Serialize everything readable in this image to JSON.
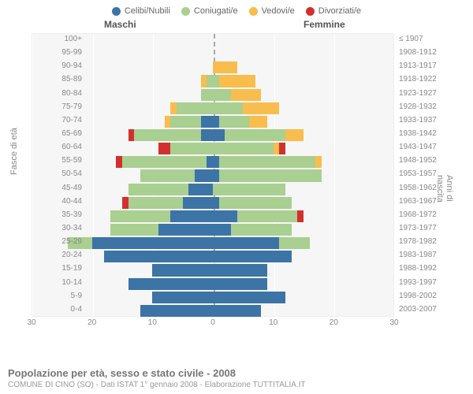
{
  "legend": [
    {
      "label": "Celibi/Nubili",
      "color": "#3c74a6"
    },
    {
      "label": "Coniugati/e",
      "color": "#a9cf91"
    },
    {
      "label": "Vedovi/e",
      "color": "#f9bd4d"
    },
    {
      "label": "Divorziati/e",
      "color": "#d42f2f"
    }
  ],
  "headers": {
    "male": "Maschi",
    "female": "Femmine"
  },
  "axis": {
    "left_title": "Fasce di età",
    "right_title": "Anni di nascita",
    "xmax": 30,
    "xticks": [
      30,
      20,
      10,
      0,
      10,
      20,
      30
    ]
  },
  "colors": {
    "celibi": "#3c74a6",
    "coniugati": "#a9cf91",
    "vedovi": "#f9bd4d",
    "divorziati": "#d42f2f",
    "plot_bg": "#f6f6f6",
    "grid": "#ffffff"
  },
  "rows": [
    {
      "age": "100+",
      "birth": "≤ 1907",
      "m": [
        0,
        0,
        0,
        0
      ],
      "f": [
        0,
        0,
        0,
        0
      ]
    },
    {
      "age": "95-99",
      "birth": "1908-1912",
      "m": [
        0,
        0,
        0,
        0
      ],
      "f": [
        0,
        0,
        0,
        0
      ]
    },
    {
      "age": "90-94",
      "birth": "1913-1917",
      "m": [
        0,
        0,
        0,
        0
      ],
      "f": [
        0,
        0,
        4,
        0
      ]
    },
    {
      "age": "85-89",
      "birth": "1918-1922",
      "m": [
        0,
        1,
        1,
        0
      ],
      "f": [
        0,
        1,
        6,
        0
      ]
    },
    {
      "age": "80-84",
      "birth": "1923-1927",
      "m": [
        0,
        2,
        0,
        0
      ],
      "f": [
        0,
        3,
        5,
        0
      ]
    },
    {
      "age": "75-79",
      "birth": "1928-1932",
      "m": [
        0,
        6,
        1,
        0
      ],
      "f": [
        0,
        5,
        6,
        0
      ]
    },
    {
      "age": "70-74",
      "birth": "1933-1937",
      "m": [
        2,
        5,
        1,
        0
      ],
      "f": [
        1,
        5,
        3,
        0
      ]
    },
    {
      "age": "65-69",
      "birth": "1938-1942",
      "m": [
        2,
        11,
        0,
        1
      ],
      "f": [
        2,
        10,
        3,
        0
      ]
    },
    {
      "age": "60-64",
      "birth": "1943-1947",
      "m": [
        0,
        7,
        0,
        2
      ],
      "f": [
        0,
        10,
        1,
        1
      ]
    },
    {
      "age": "55-59",
      "birth": "1948-1952",
      "m": [
        1,
        14,
        0,
        1
      ],
      "f": [
        1,
        16,
        1,
        0
      ]
    },
    {
      "age": "50-54",
      "birth": "1953-1957",
      "m": [
        3,
        9,
        0,
        0
      ],
      "f": [
        1,
        17,
        0,
        0
      ]
    },
    {
      "age": "45-49",
      "birth": "1958-1962",
      "m": [
        4,
        10,
        0,
        0
      ],
      "f": [
        0,
        12,
        0,
        0
      ]
    },
    {
      "age": "40-44",
      "birth": "1963-1967",
      "m": [
        5,
        9,
        0,
        1
      ],
      "f": [
        1,
        12,
        0,
        0
      ]
    },
    {
      "age": "35-39",
      "birth": "1968-1972",
      "m": [
        7,
        10,
        0,
        0
      ],
      "f": [
        4,
        10,
        0,
        1
      ]
    },
    {
      "age": "30-34",
      "birth": "1973-1977",
      "m": [
        9,
        8,
        0,
        0
      ],
      "f": [
        3,
        10,
        0,
        0
      ]
    },
    {
      "age": "25-29",
      "birth": "1978-1982",
      "m": [
        20,
        4,
        0,
        0
      ],
      "f": [
        11,
        5,
        0,
        0
      ]
    },
    {
      "age": "20-24",
      "birth": "1983-1987",
      "m": [
        18,
        0,
        0,
        0
      ],
      "f": [
        13,
        0,
        0,
        0
      ]
    },
    {
      "age": "15-19",
      "birth": "1988-1992",
      "m": [
        10,
        0,
        0,
        0
      ],
      "f": [
        9,
        0,
        0,
        0
      ]
    },
    {
      "age": "10-14",
      "birth": "1993-1997",
      "m": [
        14,
        0,
        0,
        0
      ],
      "f": [
        9,
        0,
        0,
        0
      ]
    },
    {
      "age": "5-9",
      "birth": "1998-2002",
      "m": [
        10,
        0,
        0,
        0
      ],
      "f": [
        12,
        0,
        0,
        0
      ]
    },
    {
      "age": "0-4",
      "birth": "2003-2007",
      "m": [
        12,
        0,
        0,
        0
      ],
      "f": [
        8,
        0,
        0,
        0
      ]
    }
  ],
  "footer": {
    "title": "Popolazione per età, sesso e stato civile - 2008",
    "subtitle": "COMUNE DI CINO (SO) - Dati ISTAT 1° gennaio 2008 - Elaborazione TUTTITALIA.IT"
  }
}
